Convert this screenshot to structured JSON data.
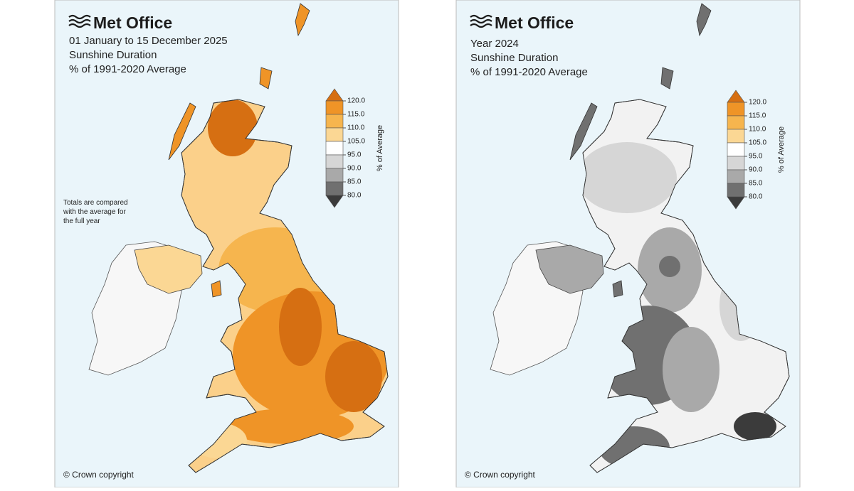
{
  "panels": [
    {
      "brand": "Met Office",
      "title_lines": [
        "01 January to 15 December 2025",
        "Sunshine Duration",
        "% of 1991-2020 Average"
      ],
      "note_lines": [
        "Totals are compared",
        "with the average for",
        "the full year"
      ],
      "copyright": "© Crown copyright"
    },
    {
      "brand": "Met Office",
      "title_lines": [
        "Year 2024",
        "Sunshine Duration",
        "% of 1991-2020 Average"
      ],
      "copyright": "© Crown copyright"
    }
  ],
  "legend": {
    "axis_label": "% of Average",
    "ticks": [
      {
        "value": 120,
        "label": "120.0"
      },
      {
        "value": 115,
        "label": "115.0"
      },
      {
        "value": 110,
        "label": "110.0"
      },
      {
        "value": 105,
        "label": "105.0"
      },
      {
        "value": 95,
        "label": "95.0"
      },
      {
        "value": 90,
        "label": "90.0"
      },
      {
        "value": 85,
        "label": "85.0"
      },
      {
        "value": 80,
        "label": "80.0"
      }
    ],
    "colors": [
      "#d66f12",
      "#ef9427",
      "#f6b54e",
      "#fbd794",
      "#ffffff",
      "#d6d6d6",
      "#a9a9a9",
      "#707070",
      "#3b3b3b"
    ]
  }
}
